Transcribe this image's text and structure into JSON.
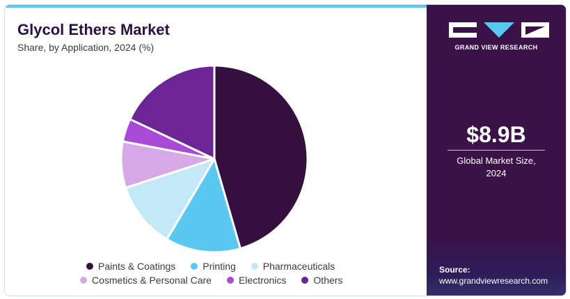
{
  "header": {
    "title": "Glycol Ethers Market",
    "subtitle": "Share, by Application, 2024 (%)"
  },
  "sidebar": {
    "brand": "GRAND VIEW RESEARCH",
    "market_size": "$8.9B",
    "market_label_line1": "Global Market Size,",
    "market_label_line2": "2024",
    "source_label": "Source:",
    "source_url": "www.grandviewresearch.com"
  },
  "colors": {
    "accent": "#5bc8f2",
    "panel": "#3a1248"
  },
  "chart_data": {
    "type": "pie",
    "title": "Glycol Ethers Market",
    "subtitle": "Share, by Application, 2024 (%)",
    "legend_position": "bottom",
    "slices": [
      {
        "label": "Paints & Coatings",
        "value": 45.5,
        "color": "#35103f"
      },
      {
        "label": "Printing",
        "value": 13.0,
        "color": "#5bc8f2"
      },
      {
        "label": "Pharmaceuticals",
        "value": 11.5,
        "color": "#c3e9f8"
      },
      {
        "label": "Cosmetics & Personal Care",
        "value": 8.0,
        "color": "#d6a9e6"
      },
      {
        "label": "Electronics",
        "value": 4.0,
        "color": "#a84ad6"
      },
      {
        "label": "Others",
        "value": 18.0,
        "color": "#6d2494"
      }
    ]
  }
}
